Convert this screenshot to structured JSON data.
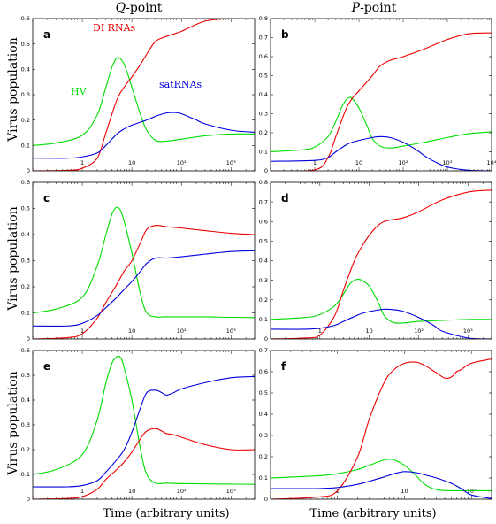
{
  "figure": {
    "col_titles": [
      {
        "italic": "Q",
        "rest": "-point"
      },
      {
        "italic": "P",
        "rest": "-point"
      }
    ],
    "ylabel": "Virus population",
    "xlabel": "Time (arbitrary units)"
  },
  "colors": {
    "HV": "#00dd00",
    "DI RNAs": "#ee0000",
    "satRNAs": "#0000dd"
  },
  "chart_data": [
    {
      "id": "a",
      "type": "line",
      "xscale": "log",
      "xlim": [
        0.1,
        3000
      ],
      "ylim": [
        0,
        0.6
      ],
      "yticks": [
        0,
        0.1,
        0.2,
        0.3,
        0.4,
        0.5,
        0.6
      ],
      "yticklabels": [
        "0",
        "0.1",
        "0.2",
        "0.3",
        "0.4",
        "0.5",
        "0.6"
      ],
      "xticks": [
        1,
        10,
        100,
        1000
      ],
      "xticklabels": [
        "1",
        "10",
        "10²",
        "10³"
      ],
      "annotations": [
        {
          "text": "DI RNAs",
          "series": "DI RNAs",
          "x": 10,
          "y": 0.48
        },
        {
          "text": "HV",
          "series": "HV",
          "x": 0.3,
          "y": 0.2
        },
        {
          "text": "satRNAs",
          "series": "satRNAs",
          "x": 150,
          "y": 0.22
        }
      ],
      "series": [
        {
          "name": "HV",
          "x": [
            0.1,
            0.3,
            1,
            2,
            3,
            4,
            5,
            6,
            7,
            8,
            10,
            15,
            20,
            30,
            50,
            100,
            300,
            1000,
            3000
          ],
          "y": [
            0.1,
            0.11,
            0.14,
            0.22,
            0.33,
            0.41,
            0.445,
            0.44,
            0.42,
            0.39,
            0.33,
            0.22,
            0.16,
            0.12,
            0.117,
            0.125,
            0.138,
            0.145,
            0.145
          ]
        },
        {
          "name": "DI RNAs",
          "x": [
            0.1,
            0.5,
            1,
            2,
            3,
            5,
            7,
            10,
            15,
            20,
            30,
            50,
            100,
            300,
            1000,
            3000
          ],
          "y": [
            0,
            0.002,
            0.01,
            0.05,
            0.15,
            0.28,
            0.33,
            0.37,
            0.42,
            0.46,
            0.51,
            0.53,
            0.55,
            0.59,
            0.6,
            0.6
          ]
        },
        {
          "name": "satRNAs",
          "x": [
            0.1,
            0.5,
            1,
            2,
            3,
            5,
            7,
            10,
            20,
            30,
            50,
            70,
            100,
            200,
            300,
            1000,
            3000
          ],
          "y": [
            0.05,
            0.05,
            0.055,
            0.07,
            0.1,
            0.145,
            0.165,
            0.18,
            0.2,
            0.215,
            0.228,
            0.23,
            0.225,
            0.2,
            0.185,
            0.16,
            0.152
          ]
        }
      ]
    },
    {
      "id": "b",
      "type": "line",
      "xscale": "log",
      "xlim": [
        0.1,
        10000
      ],
      "ylim": [
        0,
        0.8
      ],
      "yticks": [
        0,
        0.1,
        0.2,
        0.3,
        0.4,
        0.5,
        0.6,
        0.7,
        0.8
      ],
      "yticklabels": [
        "0",
        "0.1",
        "0.2",
        "0.3",
        "0.4",
        "0.5",
        "0.6",
        "0.7",
        "0.8"
      ],
      "xticks": [
        1,
        10,
        100,
        1000,
        10000
      ],
      "xticklabels": [
        "1",
        "10",
        "10²",
        "10³",
        "10⁴"
      ],
      "annotations": [],
      "series": [
        {
          "name": "HV",
          "x": [
            0.1,
            0.5,
            1,
            2,
            3,
            4,
            5,
            6,
            7,
            10,
            15,
            20,
            30,
            50,
            100,
            300,
            1000,
            3000,
            10000
          ],
          "y": [
            0.1,
            0.11,
            0.125,
            0.18,
            0.26,
            0.33,
            0.37,
            0.385,
            0.38,
            0.33,
            0.24,
            0.17,
            0.13,
            0.12,
            0.13,
            0.15,
            0.175,
            0.195,
            0.205
          ]
        },
        {
          "name": "DI RNAs",
          "x": [
            0.1,
            1,
            2,
            3,
            5,
            7,
            10,
            20,
            30,
            50,
            100,
            300,
            1000,
            3000,
            10000
          ],
          "y": [
            0,
            0.005,
            0.07,
            0.18,
            0.32,
            0.38,
            0.42,
            0.5,
            0.55,
            0.58,
            0.6,
            0.64,
            0.69,
            0.72,
            0.725
          ]
        },
        {
          "name": "satRNAs",
          "x": [
            0.1,
            1,
            2,
            3,
            5,
            7,
            10,
            20,
            30,
            50,
            100,
            200,
            300,
            500,
            1000,
            3000,
            10000
          ],
          "y": [
            0.05,
            0.055,
            0.07,
            0.1,
            0.135,
            0.15,
            0.16,
            0.175,
            0.18,
            0.175,
            0.15,
            0.11,
            0.08,
            0.05,
            0.02,
            0.003,
            0
          ]
        }
      ]
    },
    {
      "id": "c",
      "type": "line",
      "xscale": "log",
      "xlim": [
        0.1,
        3000
      ],
      "ylim": [
        0,
        0.6
      ],
      "yticks": [
        0,
        0.1,
        0.2,
        0.3,
        0.4,
        0.5,
        0.6
      ],
      "yticklabels": [
        "0",
        "0.1",
        "0.2",
        "0.3",
        "0.4",
        "0.5",
        "0.6"
      ],
      "xticks": [
        1,
        10,
        100,
        1000
      ],
      "xticklabels": [
        "1",
        "10",
        "10²",
        "10³"
      ],
      "annotations": [],
      "series": [
        {
          "name": "HV",
          "x": [
            0.1,
            0.3,
            1,
            2,
            3,
            4,
            5,
            6,
            7,
            10,
            15,
            20,
            30,
            50,
            100,
            300,
            1000,
            3000
          ],
          "y": [
            0.1,
            0.115,
            0.16,
            0.28,
            0.4,
            0.48,
            0.505,
            0.49,
            0.45,
            0.33,
            0.17,
            0.1,
            0.085,
            0.085,
            0.085,
            0.085,
            0.083,
            0.082
          ]
        },
        {
          "name": "DI RNAs",
          "x": [
            0.1,
            0.5,
            1,
            2,
            3,
            5,
            7,
            10,
            15,
            20,
            30,
            50,
            100,
            300,
            1000,
            3000
          ],
          "y": [
            0,
            0.005,
            0.02,
            0.08,
            0.14,
            0.21,
            0.26,
            0.3,
            0.37,
            0.42,
            0.435,
            0.43,
            0.425,
            0.415,
            0.405,
            0.4
          ]
        },
        {
          "name": "satRNAs",
          "x": [
            0.1,
            0.5,
            1,
            2,
            3,
            5,
            7,
            10,
            15,
            20,
            30,
            50,
            100,
            300,
            1000,
            3000
          ],
          "y": [
            0.05,
            0.05,
            0.06,
            0.09,
            0.12,
            0.16,
            0.19,
            0.22,
            0.26,
            0.29,
            0.31,
            0.31,
            0.315,
            0.325,
            0.335,
            0.338
          ]
        }
      ]
    },
    {
      "id": "d",
      "type": "line",
      "xscale": "log",
      "xlim": [
        0.1,
        3000
      ],
      "ylim": [
        0,
        0.8
      ],
      "yticks": [
        0,
        0.1,
        0.2,
        0.3,
        0.4,
        0.5,
        0.6,
        0.7,
        0.8
      ],
      "yticklabels": [
        "0",
        "0.1",
        "0.2",
        "0.3",
        "0.4",
        "0.5",
        "0.6",
        "0.7",
        "0.8"
      ],
      "xticks": [
        1,
        10,
        100,
        1000
      ],
      "xticklabels": [
        "1",
        "10",
        "10²",
        "10³"
      ],
      "annotations": [],
      "series": [
        {
          "name": "HV",
          "x": [
            0.1,
            0.5,
            1,
            2,
            3,
            4,
            5,
            6,
            7,
            10,
            15,
            20,
            30,
            50,
            100,
            300,
            1000,
            3000
          ],
          "y": [
            0.1,
            0.11,
            0.125,
            0.17,
            0.23,
            0.28,
            0.3,
            0.305,
            0.3,
            0.27,
            0.19,
            0.12,
            0.085,
            0.082,
            0.09,
            0.095,
            0.1,
            0.1
          ]
        },
        {
          "name": "DI RNAs",
          "x": [
            0.1,
            0.5,
            1,
            2,
            3,
            5,
            7,
            10,
            15,
            20,
            30,
            50,
            100,
            300,
            1000,
            3000
          ],
          "y": [
            0,
            0.005,
            0.02,
            0.12,
            0.25,
            0.4,
            0.47,
            0.53,
            0.58,
            0.6,
            0.61,
            0.62,
            0.65,
            0.71,
            0.75,
            0.76
          ]
        },
        {
          "name": "satRNAs",
          "x": [
            0.1,
            0.5,
            1,
            2,
            3,
            5,
            7,
            10,
            15,
            20,
            30,
            50,
            100,
            200,
            300,
            1000,
            3000
          ],
          "y": [
            0.05,
            0.05,
            0.055,
            0.07,
            0.09,
            0.115,
            0.13,
            0.14,
            0.148,
            0.152,
            0.15,
            0.14,
            0.11,
            0.07,
            0.04,
            0.005,
            0
          ]
        }
      ]
    },
    {
      "id": "e",
      "type": "line",
      "xscale": "log",
      "xlim": [
        0.1,
        3000
      ],
      "ylim": [
        0,
        0.6
      ],
      "yticks": [
        0,
        0.1,
        0.2,
        0.3,
        0.4,
        0.5,
        0.6
      ],
      "yticklabels": [
        "0",
        "0.1",
        "0.2",
        "0.3",
        "0.4",
        "0.5",
        "0.6"
      ],
      "xticks": [
        1,
        10,
        100,
        1000
      ],
      "xticklabels": [
        "1",
        "10",
        "10²",
        "10³"
      ],
      "annotations": [],
      "series": [
        {
          "name": "HV",
          "x": [
            0.1,
            0.3,
            1,
            2,
            3,
            4,
            5,
            6,
            7,
            10,
            15,
            20,
            30,
            50,
            100,
            300,
            1000,
            3000
          ],
          "y": [
            0.1,
            0.12,
            0.18,
            0.32,
            0.47,
            0.55,
            0.575,
            0.57,
            0.53,
            0.4,
            0.2,
            0.1,
            0.065,
            0.065,
            0.063,
            0.062,
            0.061,
            0.06
          ]
        },
        {
          "name": "DI RNAs",
          "x": [
            0.1,
            0.5,
            1,
            2,
            3,
            5,
            7,
            10,
            15,
            20,
            30,
            40,
            50,
            70,
            100,
            300,
            1000,
            3000
          ],
          "y": [
            0,
            0.003,
            0.01,
            0.04,
            0.08,
            0.12,
            0.15,
            0.19,
            0.245,
            0.275,
            0.285,
            0.275,
            0.265,
            0.26,
            0.25,
            0.22,
            0.2,
            0.2
          ]
        },
        {
          "name": "satRNAs",
          "x": [
            0.1,
            0.5,
            1,
            2,
            3,
            5,
            7,
            10,
            15,
            20,
            30,
            40,
            50,
            70,
            100,
            300,
            1000,
            3000
          ],
          "y": [
            0.05,
            0.05,
            0.055,
            0.075,
            0.11,
            0.16,
            0.2,
            0.27,
            0.37,
            0.43,
            0.44,
            0.43,
            0.42,
            0.43,
            0.445,
            0.47,
            0.49,
            0.495
          ]
        }
      ]
    },
    {
      "id": "f",
      "type": "line",
      "xscale": "log",
      "xlim": [
        0.1,
        200
      ],
      "ylim": [
        0,
        0.7
      ],
      "yticks": [
        0,
        0.1,
        0.2,
        0.3,
        0.4,
        0.5,
        0.6,
        0.7
      ],
      "yticklabels": [
        "0",
        "0.1",
        "0.2",
        "0.3",
        "0.4",
        "0.5",
        "0.6",
        "0.7"
      ],
      "xticks": [
        1,
        10,
        100
      ],
      "xticklabels": [
        "1",
        "10",
        "10²"
      ],
      "annotations": [],
      "series": [
        {
          "name": "HV",
          "x": [
            0.1,
            0.5,
            1,
            2,
            3,
            4,
            5,
            6,
            7,
            10,
            15,
            20,
            30,
            50,
            100,
            200
          ],
          "y": [
            0.1,
            0.11,
            0.12,
            0.14,
            0.16,
            0.175,
            0.185,
            0.188,
            0.185,
            0.16,
            0.11,
            0.07,
            0.045,
            0.04,
            0.04,
            0.04
          ]
        },
        {
          "name": "DI RNAs",
          "x": [
            0.1,
            0.5,
            1,
            2,
            3,
            5,
            7,
            10,
            15,
            20,
            30,
            40,
            50,
            60,
            70,
            100,
            200
          ],
          "y": [
            0,
            0.01,
            0.04,
            0.2,
            0.38,
            0.55,
            0.61,
            0.64,
            0.645,
            0.63,
            0.595,
            0.57,
            0.575,
            0.6,
            0.61,
            0.64,
            0.66
          ]
        },
        {
          "name": "satRNAs",
          "x": [
            0.1,
            0.5,
            1,
            2,
            3,
            5,
            7,
            10,
            15,
            20,
            30,
            50,
            70,
            100,
            200
          ],
          "y": [
            0.05,
            0.05,
            0.055,
            0.07,
            0.085,
            0.105,
            0.12,
            0.13,
            0.125,
            0.115,
            0.1,
            0.075,
            0.05,
            0.02,
            0.003
          ]
        }
      ]
    }
  ]
}
